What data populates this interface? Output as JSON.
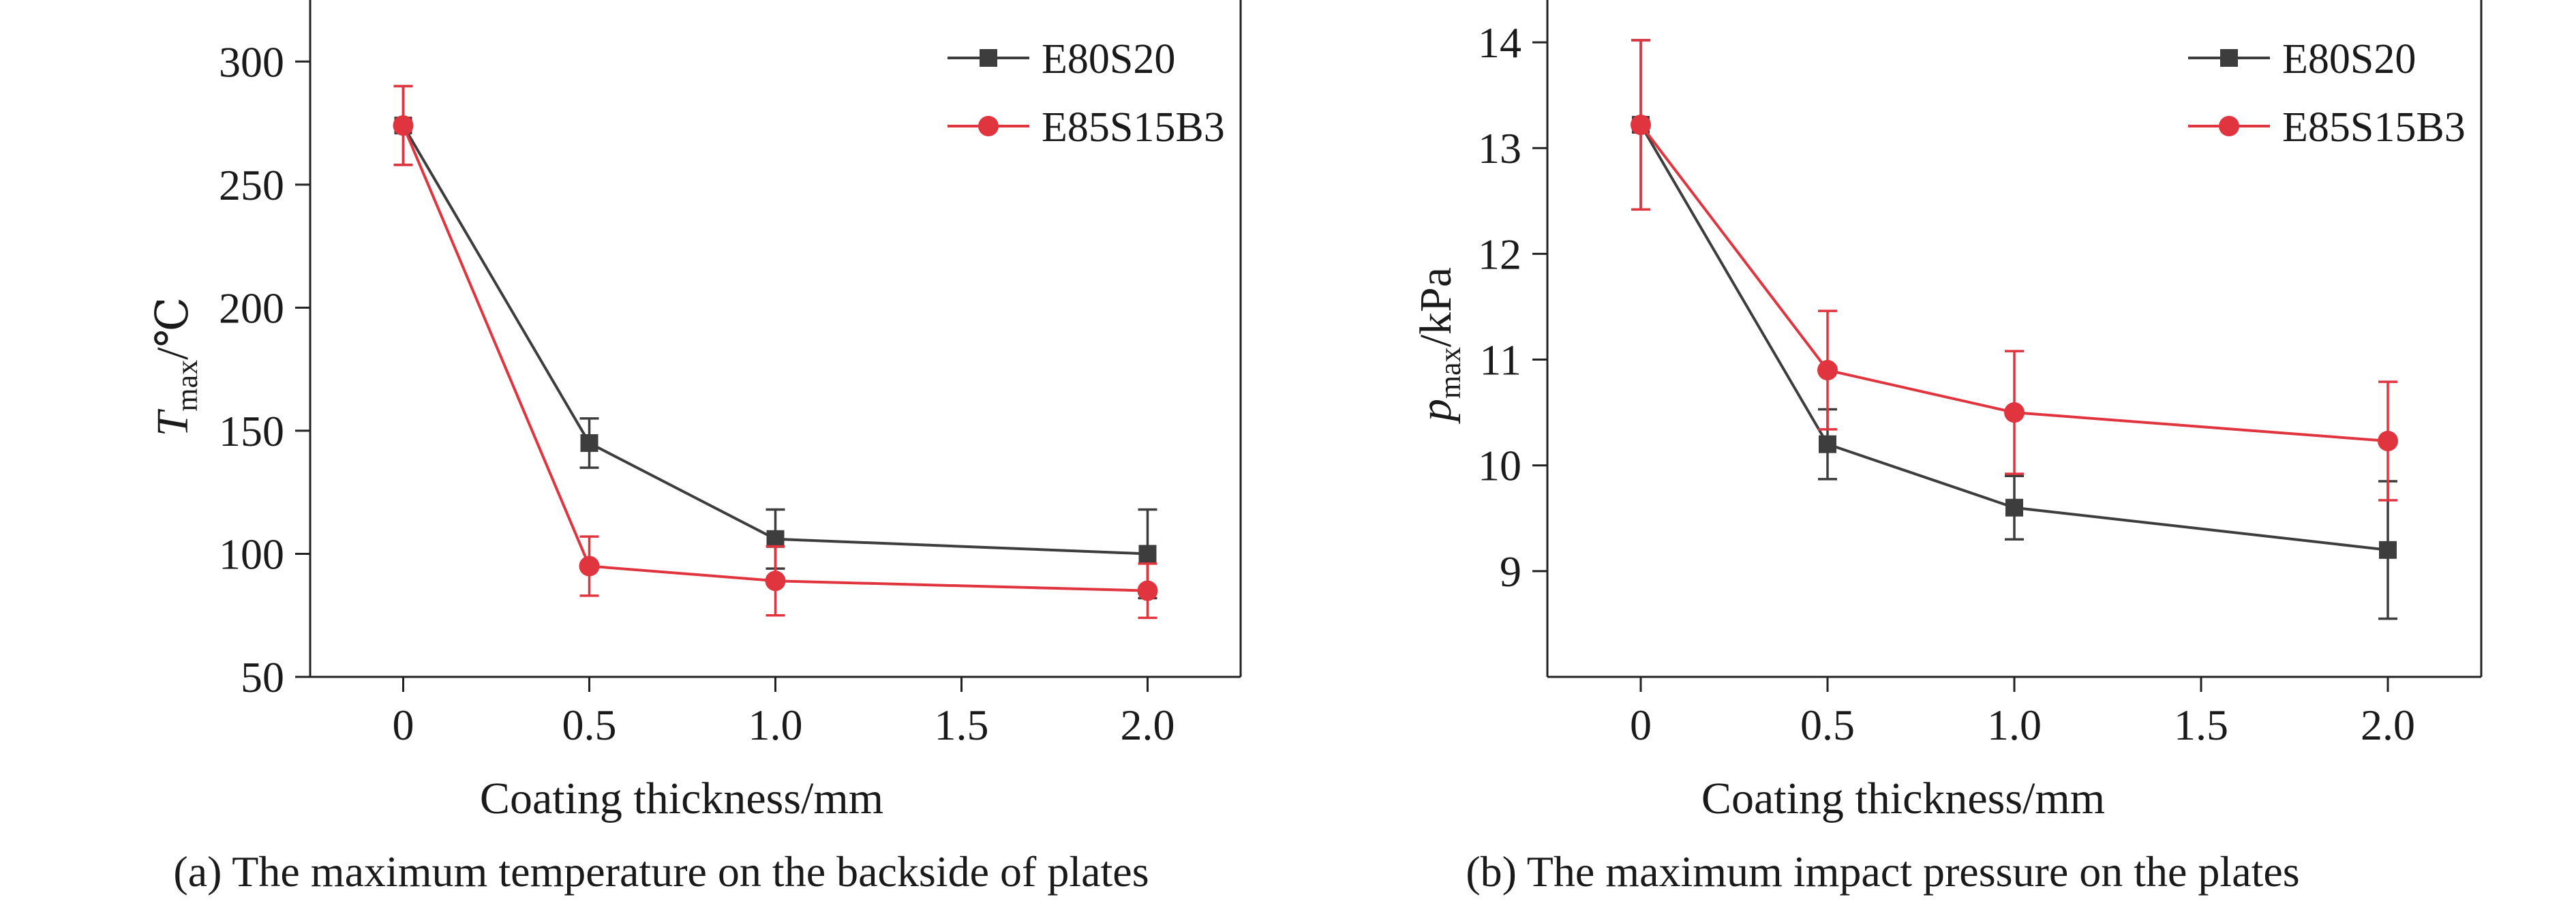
{
  "colors": {
    "E80S20": "#3d3d3d",
    "E85S15B3": "#e0343f"
  },
  "chart_data": [
    {
      "type": "line",
      "title": "",
      "caption": "(a) The maximum temperature on the backside of plates",
      "xlabel": "Coating thickness/mm",
      "ylabel": {
        "main": "T",
        "sub": "max",
        "unit": "/℃"
      },
      "categories": [
        "0",
        "0.5",
        "1.0",
        "1.5",
        "2.0"
      ],
      "x": [
        0,
        0.5,
        1.0,
        2.0
      ],
      "xlim": [
        -0.25,
        2.25
      ],
      "ylim": [
        50,
        325
      ],
      "yticks": [
        50,
        100,
        150,
        200,
        250,
        300
      ],
      "grid": false,
      "legend": "top-right",
      "series": [
        {
          "name": "E80S20",
          "marker": "square",
          "values": [
            274,
            145,
            106,
            100
          ],
          "errors": [
            16,
            10,
            12,
            18
          ]
        },
        {
          "name": "E85S15B3",
          "marker": "circle",
          "values": [
            274,
            95,
            89,
            85
          ],
          "errors": [
            16,
            12,
            14,
            11
          ]
        }
      ]
    },
    {
      "type": "line",
      "title": "",
      "caption": "(b) The maximum impact pressure on the plates",
      "xlabel": "Coating thickness/mm",
      "ylabel": {
        "main": "p",
        "sub": "max",
        "unit": "/kPa"
      },
      "categories": [
        "0",
        "0.5",
        "1.0",
        "1.5",
        "2.0"
      ],
      "x": [
        0,
        0.5,
        1.0,
        2.0
      ],
      "xlim": [
        -0.25,
        2.25
      ],
      "ylim": [
        8,
        14.4
      ],
      "yticks": [
        9,
        10,
        11,
        12,
        13,
        14
      ],
      "grid": false,
      "legend": "top-right",
      "series": [
        {
          "name": "E80S20",
          "marker": "square",
          "values": [
            13.22,
            10.2,
            9.6,
            9.2
          ],
          "errors": [
            0.8,
            0.33,
            0.3,
            0.65
          ]
        },
        {
          "name": "E85S15B3",
          "marker": "circle",
          "values": [
            13.22,
            10.9,
            10.5,
            10.23
          ],
          "errors": [
            0.8,
            0.56,
            0.58,
            0.56
          ]
        }
      ]
    }
  ]
}
